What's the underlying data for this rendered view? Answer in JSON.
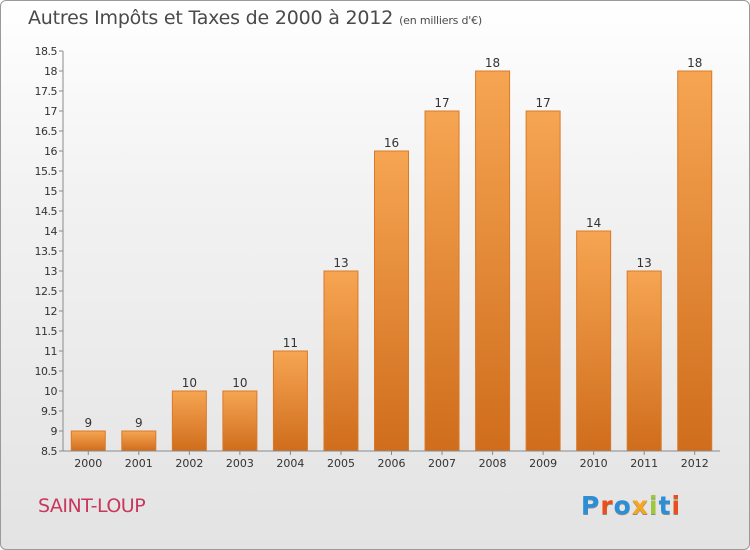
{
  "chart": {
    "title": "Autres Impôts et Taxes de 2000 à 2012",
    "subtitle": "(en milliers d'€)",
    "city": "SAINT-LOUP",
    "logo": {
      "text": "Proxiti",
      "letters": [
        {
          "ch": "P",
          "color": "#2a8fd6"
        },
        {
          "ch": "r",
          "color": "#e94e1b"
        },
        {
          "ch": "o",
          "color": "#2a8fd6"
        },
        {
          "ch": "x",
          "color": "#f5a623"
        },
        {
          "ch": "i",
          "color": "#9ec93a"
        },
        {
          "ch": "t",
          "color": "#2a8fd6"
        },
        {
          "ch": "i",
          "color": "#e94e1b"
        }
      ]
    }
  },
  "chart_data": {
    "type": "bar",
    "title": "Autres Impôts et Taxes de 2000 à 2012",
    "subtitle": "(en milliers d'€)",
    "categories": [
      "2000",
      "2001",
      "2002",
      "2003",
      "2004",
      "2005",
      "2006",
      "2007",
      "2008",
      "2009",
      "2010",
      "2011",
      "2012"
    ],
    "values": [
      9,
      9,
      10,
      10,
      11,
      13,
      16,
      17,
      18,
      17,
      14,
      13,
      18
    ],
    "ylim": [
      8.5,
      18.5
    ],
    "yticks": [
      "8.5",
      "9",
      "9.5",
      "10",
      "10.5",
      "11",
      "11.5",
      "12",
      "12.5",
      "13",
      "13.5",
      "14",
      "14.5",
      "15",
      "15.5",
      "16",
      "16.5",
      "17",
      "17.5",
      "18",
      "18.5"
    ],
    "grid": false,
    "colors": {
      "bar_light": "#f6a552",
      "bar_dark": "#cf6d1c",
      "bar_edge": "#d97a2b",
      "axis": "#8a8a8a",
      "text": "#333333"
    }
  }
}
